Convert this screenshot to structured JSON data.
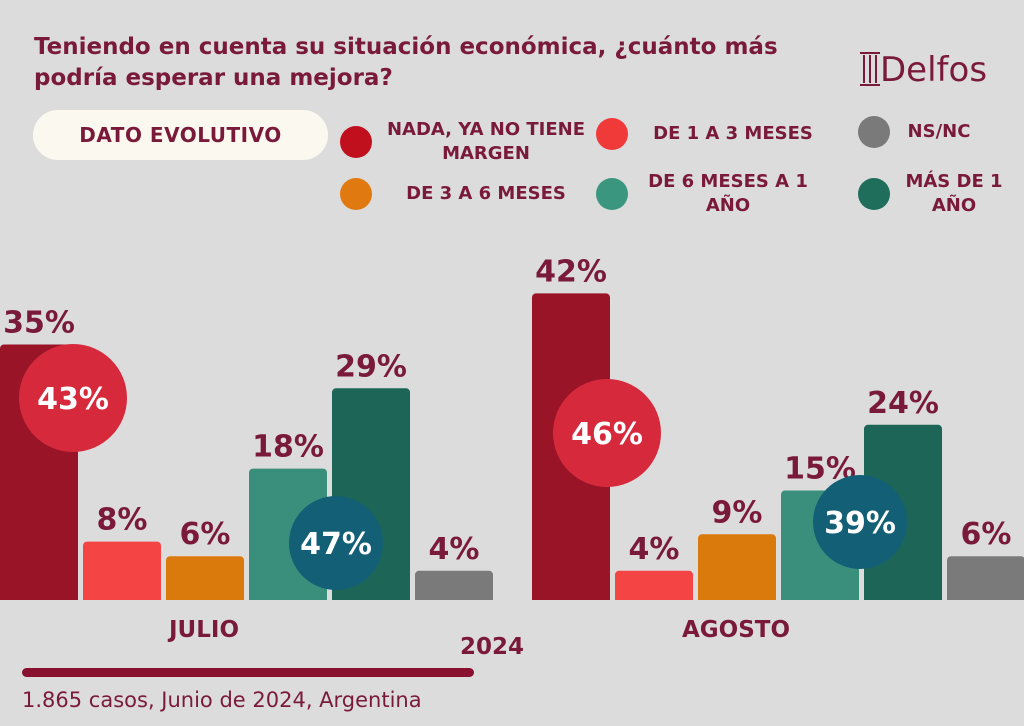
{
  "title": "Teniendo en cuenta su situación económica, ¿cuánto más podría esperar una mejora?",
  "logo": {
    "text": "Delfos"
  },
  "tag": "DATO EVOLUTIVO",
  "legend": [
    {
      "label": "NADA, YA NO TIENE MARGEN",
      "color": "#c0101e"
    },
    {
      "label": "DE 1 A 3 MESES",
      "color": "#f03a3a"
    },
    {
      "label": "NS/NC",
      "color": "#7a7a7a"
    },
    {
      "label": "DE 3 A 6 MESES",
      "color": "#e07a10"
    },
    {
      "label": "DE 6 MESES A 1 AÑO",
      "color": "#3b9680"
    },
    {
      "label": "MÁS DE 1 AÑO",
      "color": "#1f6e5c"
    }
  ],
  "year": "2024",
  "source": "1.865 casos, Junio de 2024, Argentina",
  "chart_data": {
    "type": "bar",
    "categories": [
      "JULIO",
      "AGOSTO"
    ],
    "series": [
      {
        "name": "NADA, YA NO TIENE MARGEN",
        "values": [
          35,
          42
        ],
        "labels": [
          "35%",
          "42%"
        ],
        "color": "#9a1428"
      },
      {
        "name": "DE 1 A 3 MESES",
        "values": [
          8,
          4
        ],
        "labels": [
          "8%",
          "4%"
        ],
        "color": "#f44444"
      },
      {
        "name": "DE 3 A 6 MESES",
        "values": [
          6,
          9
        ],
        "labels": [
          "6%",
          "9%"
        ],
        "color": "#db7a0c"
      },
      {
        "name": "DE 6 MESES A 1 AÑO",
        "values": [
          18,
          15
        ],
        "labels": [
          "18%",
          "15%"
        ],
        "color": "#3a8f7c"
      },
      {
        "name": "MÁS DE 1 AÑO",
        "values": [
          29,
          24
        ],
        "labels": [
          "29%",
          "24%"
        ],
        "color": "#1d6657"
      },
      {
        "name": "NS/NC",
        "values": [
          4,
          6
        ],
        "labels": [
          "4%",
          "6%"
        ],
        "color": "#7a7a7a"
      }
    ],
    "aggregates": [
      {
        "category": "JULIO",
        "short_term": "43%",
        "long_term": "47%"
      },
      {
        "category": "AGOSTO",
        "short_term": "46%",
        "long_term": "39%"
      }
    ],
    "aggregate_colors": {
      "short_term": "#d62a3c",
      "long_term": "#135f75"
    }
  }
}
